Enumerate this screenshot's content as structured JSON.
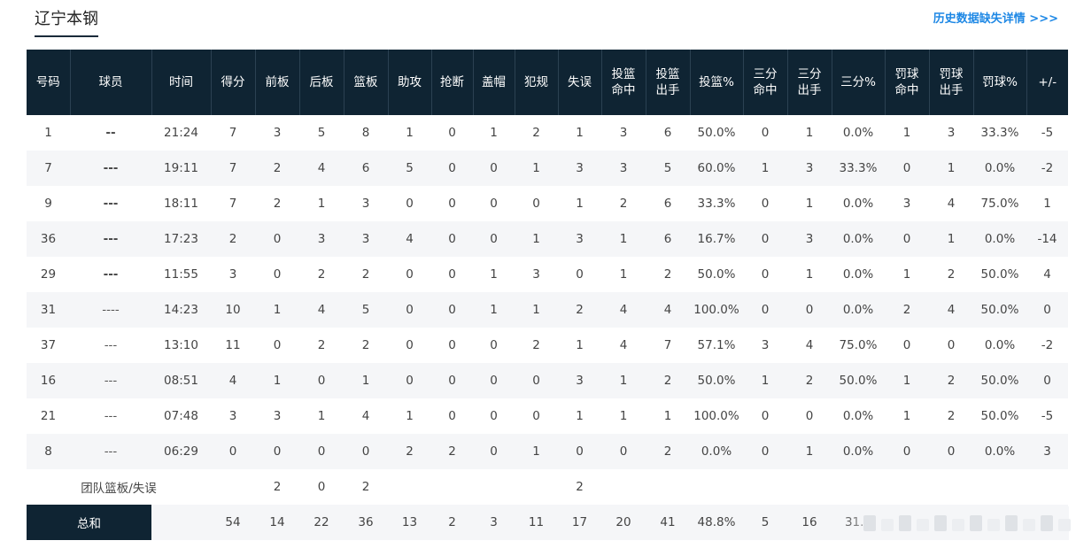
{
  "team_tab": "辽宁本钢",
  "history_link": "历史数据缺失详情 >>>",
  "headers": [
    "号码",
    "球员",
    "时间",
    "得分",
    "前板",
    "后板",
    "篮板",
    "助攻",
    "抢断",
    "盖帽",
    "犯规",
    "失误",
    "投篮命中",
    "投篮出手",
    "投篮%",
    "三分命中",
    "三分出手",
    "三分%",
    "罚球命中",
    "罚球出手",
    "罚球%",
    "+/-"
  ],
  "header_lines": [
    [
      "号码"
    ],
    [
      "球员"
    ],
    [
      "时间"
    ],
    [
      "得分"
    ],
    [
      "前板"
    ],
    [
      "后板"
    ],
    [
      "篮板"
    ],
    [
      "助攻"
    ],
    [
      "抢断"
    ],
    [
      "盖帽"
    ],
    [
      "犯规"
    ],
    [
      "失误"
    ],
    [
      "投篮",
      "命中"
    ],
    [
      "投篮",
      "出手"
    ],
    [
      "投篮%"
    ],
    [
      "三分",
      "命中"
    ],
    [
      "三分",
      "出手"
    ],
    [
      "三分%"
    ],
    [
      "罚球",
      "命中"
    ],
    [
      "罚球",
      "出手"
    ],
    [
      "罚球%"
    ],
    [
      "+/-"
    ]
  ],
  "rows": [
    [
      "1",
      "--",
      "21:24",
      "7",
      "3",
      "5",
      "8",
      "1",
      "0",
      "1",
      "2",
      "1",
      "3",
      "6",
      "50.0%",
      "0",
      "1",
      "0.0%",
      "1",
      "3",
      "33.3%",
      "-5"
    ],
    [
      "7",
      "---",
      "19:11",
      "7",
      "2",
      "4",
      "6",
      "5",
      "0",
      "0",
      "1",
      "3",
      "3",
      "5",
      "60.0%",
      "1",
      "3",
      "33.3%",
      "0",
      "1",
      "0.0%",
      "-2"
    ],
    [
      "9",
      "---",
      "18:11",
      "7",
      "2",
      "1",
      "3",
      "0",
      "0",
      "0",
      "0",
      "1",
      "2",
      "6",
      "33.3%",
      "0",
      "1",
      "0.0%",
      "3",
      "4",
      "75.0%",
      "1"
    ],
    [
      "36",
      "---",
      "17:23",
      "2",
      "0",
      "3",
      "3",
      "4",
      "0",
      "0",
      "1",
      "3",
      "1",
      "6",
      "16.7%",
      "0",
      "3",
      "0.0%",
      "0",
      "1",
      "0.0%",
      "-14"
    ],
    [
      "29",
      "---",
      "11:55",
      "3",
      "0",
      "2",
      "2",
      "0",
      "0",
      "1",
      "3",
      "0",
      "1",
      "2",
      "50.0%",
      "0",
      "1",
      "0.0%",
      "1",
      "2",
      "50.0%",
      "4"
    ],
    [
      "31",
      "----",
      "14:23",
      "10",
      "1",
      "4",
      "5",
      "0",
      "0",
      "1",
      "1",
      "2",
      "4",
      "4",
      "100.0%",
      "0",
      "0",
      "0.0%",
      "2",
      "4",
      "50.0%",
      "0"
    ],
    [
      "37",
      "---",
      "13:10",
      "11",
      "0",
      "2",
      "2",
      "0",
      "0",
      "0",
      "2",
      "1",
      "4",
      "7",
      "57.1%",
      "3",
      "4",
      "75.0%",
      "0",
      "0",
      "0.0%",
      "-2"
    ],
    [
      "16",
      "---",
      "08:51",
      "4",
      "1",
      "0",
      "1",
      "0",
      "0",
      "0",
      "0",
      "3",
      "1",
      "2",
      "50.0%",
      "1",
      "2",
      "50.0%",
      "1",
      "2",
      "50.0%",
      "0"
    ],
    [
      "21",
      "---",
      "07:48",
      "3",
      "3",
      "1",
      "4",
      "1",
      "0",
      "0",
      "0",
      "1",
      "1",
      "1",
      "100.0%",
      "0",
      "0",
      "0.0%",
      "1",
      "2",
      "50.0%",
      "-5"
    ],
    [
      "8",
      "---",
      "06:29",
      "0",
      "0",
      "0",
      "0",
      "2",
      "2",
      "0",
      "1",
      "0",
      "0",
      "2",
      "0.0%",
      "0",
      "1",
      "0.0%",
      "0",
      "0",
      "0.0%",
      "3"
    ]
  ],
  "player_bold": [
    true,
    true,
    true,
    true,
    true,
    false,
    false,
    false,
    false,
    false
  ],
  "team_row": {
    "label": "团队篮板/失误",
    "offensive_reb": "2",
    "defensive_reb": "0",
    "rebounds": "2",
    "turnovers": "2"
  },
  "total_row": {
    "label": "总和",
    "values": [
      "54",
      "14",
      "22",
      "36",
      "13",
      "2",
      "3",
      "11",
      "17",
      "20",
      "41",
      "48.8%",
      "5",
      "16",
      "31..."
    ]
  }
}
